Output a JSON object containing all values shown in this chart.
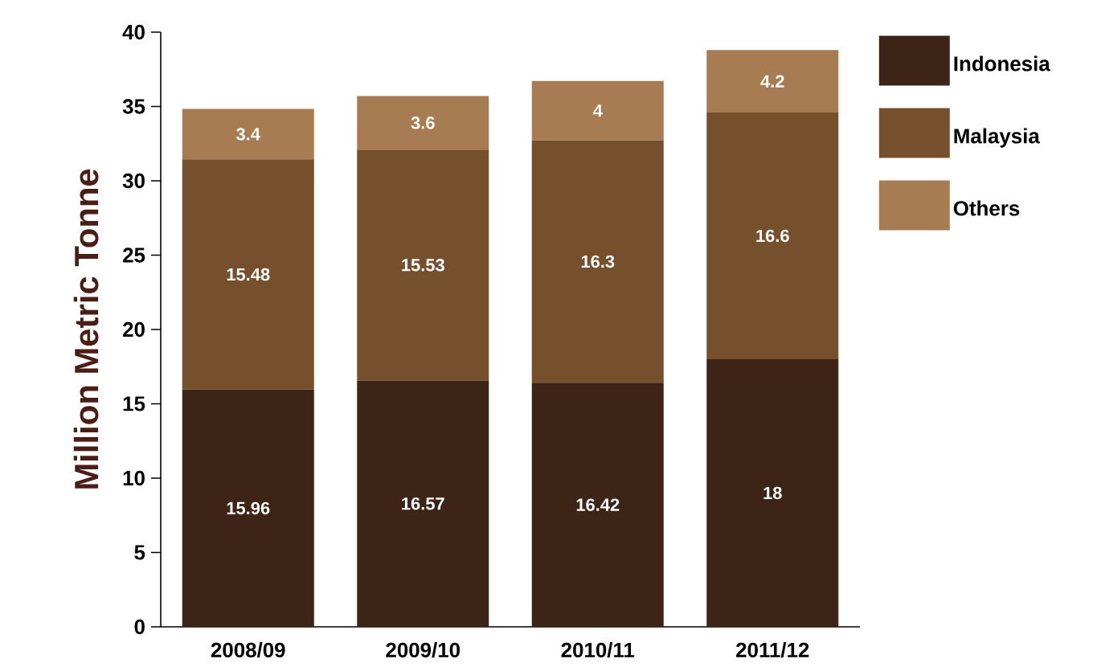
{
  "chart_data": {
    "type": "bar",
    "stacked": true,
    "ylabel": "Million Metric Tonne",
    "categories": [
      "2008/09",
      "2009/10",
      "2010/11",
      "2011/12"
    ],
    "series": [
      {
        "name": "Indonesia",
        "color": "#3d2416",
        "values": [
          15.96,
          16.57,
          16.42,
          18
        ]
      },
      {
        "name": "Malaysia",
        "color": "#76502d",
        "values": [
          15.48,
          15.53,
          16.3,
          16.6
        ]
      },
      {
        "name": "Others",
        "color": "#a77c52",
        "values": [
          3.4,
          3.6,
          4,
          4.2
        ]
      }
    ],
    "ylim": [
      0,
      40
    ],
    "yticks": [
      0,
      5,
      10,
      15,
      20,
      25,
      30,
      35,
      40
    ],
    "data_labels": true,
    "legend": "top right",
    "grid": false
  }
}
